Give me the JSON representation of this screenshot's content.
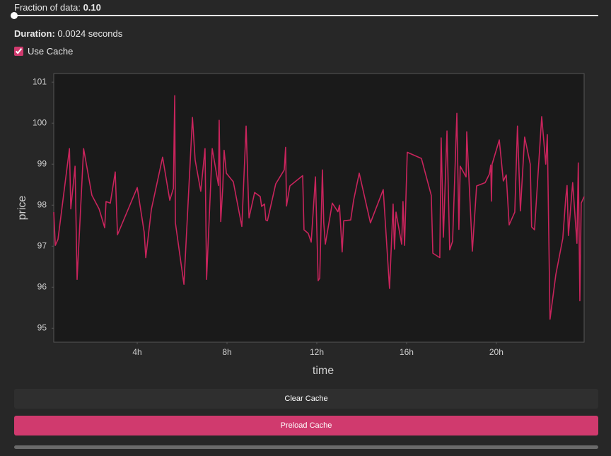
{
  "controls": {
    "fraction_label": "Fraction of data:",
    "fraction_value": "0.10",
    "duration_label": "Duration:",
    "duration_value": "0.0024 seconds",
    "use_cache_label": "Use Cache",
    "use_cache_checked": true
  },
  "chart_data": {
    "type": "line",
    "x_label": "time",
    "y_label": "price",
    "color": "#c8245c",
    "grid": false,
    "x": [
      0.28,
      0.35,
      0.47,
      0.98,
      1.04,
      1.23,
      1.32,
      1.61,
      1.98,
      2.3,
      2.55,
      2.61,
      2.8,
      3.02,
      3.12,
      4.0,
      4.31,
      4.38,
      4.63,
      5.13,
      5.45,
      5.61,
      5.67,
      5.7,
      6.08,
      6.46,
      6.58,
      6.83,
      7.02,
      7.09,
      7.34,
      7.62,
      7.65,
      7.72,
      7.81,
      7.87,
      7.97,
      8.28,
      8.66,
      8.85,
      8.98,
      9.23,
      9.48,
      9.54,
      9.67,
      9.73,
      9.8,
      10.17,
      10.55,
      10.61,
      10.65,
      10.8,
      11.37,
      11.43,
      11.62,
      11.75,
      11.94,
      12.06,
      12.13,
      12.25,
      12.31,
      12.38,
      12.69,
      12.94,
      13.01,
      13.13,
      13.2,
      13.51,
      13.64,
      13.89,
      14.39,
      14.96,
      15.24,
      15.4,
      15.46,
      15.53,
      15.78,
      15.84,
      15.91,
      16.03,
      16.66,
      17.1,
      17.17,
      17.48,
      17.54,
      17.64,
      17.8,
      17.92,
      18.05,
      18.24,
      18.33,
      18.39,
      18.65,
      18.68,
      18.93,
      19.12,
      19.5,
      19.69,
      19.75,
      19.78,
      19.81,
      20.13,
      20.31,
      20.44,
      20.57,
      20.82,
      20.94,
      21.07,
      21.26,
      21.51,
      21.57,
      21.7,
      22.02,
      22.2,
      22.27,
      22.39,
      22.65,
      22.96,
      23.09,
      23.15,
      23.21,
      23.4,
      23.59,
      23.65,
      23.72,
      23.78,
      23.91
    ],
    "values": [
      97.83,
      97.02,
      97.17,
      99.38,
      97.91,
      98.95,
      96.19,
      99.38,
      98.24,
      97.91,
      97.45,
      98.09,
      98.05,
      98.81,
      97.28,
      98.43,
      97.34,
      96.72,
      97.9,
      99.17,
      98.12,
      98.41,
      100.67,
      97.57,
      96.07,
      100.14,
      99.1,
      98.34,
      99.38,
      96.19,
      99.38,
      98.48,
      100.07,
      97.6,
      98.43,
      99.34,
      98.78,
      98.57,
      97.48,
      99.93,
      97.69,
      98.31,
      98.21,
      97.97,
      98.03,
      97.64,
      97.62,
      98.52,
      98.86,
      99.41,
      97.98,
      98.47,
      98.72,
      97.4,
      97.31,
      97.1,
      98.69,
      96.16,
      96.22,
      98.86,
      97.57,
      97.05,
      98.05,
      97.84,
      98.0,
      96.86,
      97.62,
      97.64,
      98.12,
      98.78,
      97.57,
      98.38,
      95.97,
      98.03,
      96.93,
      97.83,
      97.05,
      98.09,
      97.02,
      99.29,
      99.14,
      98.24,
      96.83,
      96.72,
      99.64,
      97.22,
      99.81,
      96.91,
      97.12,
      100.24,
      97.41,
      98.95,
      98.69,
      99.79,
      96.88,
      98.47,
      98.55,
      98.76,
      98.98,
      98.1,
      99.0,
      99.59,
      98.59,
      98.74,
      97.52,
      97.83,
      99.93,
      97.86,
      99.66,
      99.0,
      97.47,
      97.4,
      100.16,
      99.0,
      99.72,
      95.22,
      96.31,
      97.19,
      98.17,
      98.48,
      97.26,
      98.55,
      97.07,
      99.03,
      95.67,
      98.05,
      98.21
    ],
    "xlim": [
      0.28,
      23.91
    ],
    "ylim": [
      94.66,
      101.21
    ],
    "xticks": [
      {
        "value": 4,
        "label": "4h"
      },
      {
        "value": 8,
        "label": "8h"
      },
      {
        "value": 12,
        "label": "12h"
      },
      {
        "value": 16,
        "label": "16h"
      },
      {
        "value": 20,
        "label": "20h"
      }
    ],
    "yticks": [
      95,
      96,
      97,
      98,
      99,
      100,
      101
    ]
  },
  "buttons": {
    "clear": "Clear Cache",
    "preload": "Preload Cache"
  }
}
